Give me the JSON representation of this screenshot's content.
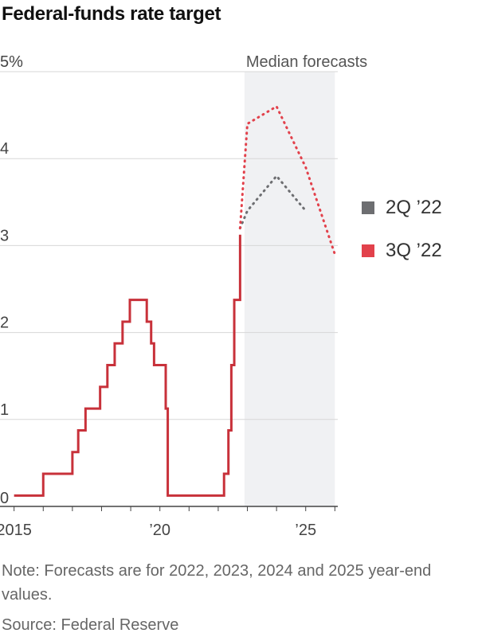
{
  "chart_data": {
    "type": "line",
    "title": "Federal-funds rate target",
    "shaded_region": {
      "label": "Median forecasts",
      "x_start": 2022.9,
      "x_end": 2026.0
    },
    "x_ticks": [
      {
        "value": 2015,
        "label": "2015"
      },
      {
        "value": 2020,
        "label": "’20"
      },
      {
        "value": 2025,
        "label": "’25"
      }
    ],
    "y_ticks": [
      {
        "value": 0,
        "label": "0"
      },
      {
        "value": 1,
        "label": "1"
      },
      {
        "value": 2,
        "label": "2"
      },
      {
        "value": 3,
        "label": "3"
      },
      {
        "value": 4,
        "label": "4"
      },
      {
        "value": 5,
        "label": "5%"
      }
    ],
    "xlim": [
      2014.9,
      2026.1
    ],
    "ylim": [
      0,
      5
    ],
    "grid": true,
    "actual": {
      "color": "#c8313a",
      "steps": [
        [
          2015.0,
          0.125
        ],
        [
          2016.0,
          0.375
        ],
        [
          2017.0,
          0.625
        ],
        [
          2017.2,
          0.875
        ],
        [
          2017.45,
          1.125
        ],
        [
          2017.95,
          1.375
        ],
        [
          2018.2,
          1.625
        ],
        [
          2018.45,
          1.875
        ],
        [
          2018.72,
          2.125
        ],
        [
          2018.97,
          2.375
        ],
        [
          2019.55,
          2.125
        ],
        [
          2019.7,
          1.875
        ],
        [
          2019.8,
          1.625
        ],
        [
          2020.2,
          1.125
        ],
        [
          2020.27,
          0.125
        ],
        [
          2022.2,
          0.375
        ],
        [
          2022.35,
          0.875
        ],
        [
          2022.45,
          1.625
        ],
        [
          2022.55,
          2.375
        ],
        [
          2022.75,
          3.125
        ]
      ]
    },
    "series": [
      {
        "name": "2Q ’22",
        "color": "#6d6e71",
        "dotted": true,
        "x": [
          2022.75,
          2023.0,
          2024.0,
          2025.0
        ],
        "values": [
          3.2,
          3.4,
          3.8,
          3.4
        ]
      },
      {
        "name": "3Q ’22",
        "color": "#e2414b",
        "dotted": true,
        "x": [
          2022.75,
          2023.0,
          2024.0,
          2025.0,
          2026.0
        ],
        "values": [
          3.2,
          4.4,
          4.6,
          3.9,
          2.9
        ]
      }
    ],
    "note": "Note: Forecasts are for 2022, 2023, 2024 and 2025 year-end values.",
    "source": "Source: Federal Reserve"
  }
}
